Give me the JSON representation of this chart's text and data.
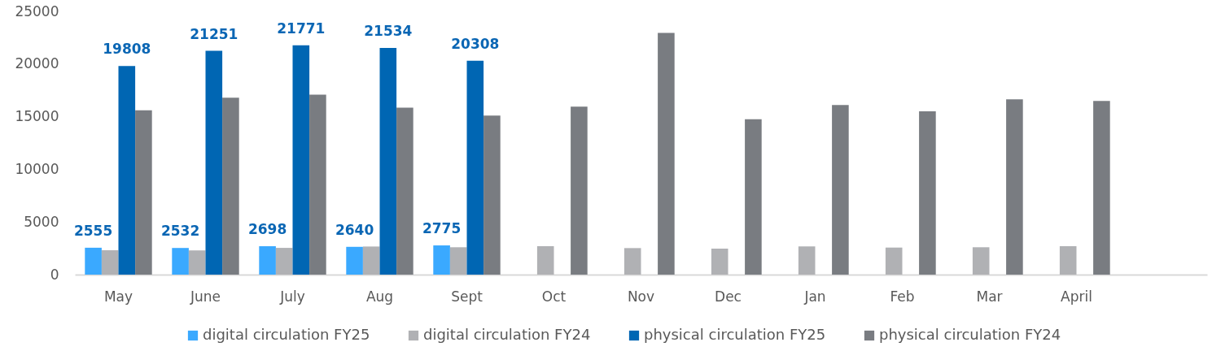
{
  "chart_data": {
    "type": "bar",
    "categories": [
      "May",
      "June",
      "July",
      "Aug",
      "Sept",
      "Oct",
      "Nov",
      "Dec",
      "Jan",
      "Feb",
      "Mar",
      "April",
      null
    ],
    "series": [
      {
        "name": "digital circulation FY25",
        "color": "#3aa9ff",
        "values": [
          2555,
          2532,
          2698,
          2640,
          2775,
          null,
          null,
          null,
          null,
          null,
          null,
          null,
          null
        ],
        "value_labels": [
          "2555",
          "2532",
          "2698",
          "2640",
          "2775",
          null,
          null,
          null,
          null,
          null,
          null,
          null,
          null
        ]
      },
      {
        "name": "digital circulation FY24",
        "color": "#b0b1b4",
        "values": [
          2320,
          2300,
          2540,
          2670,
          2600,
          2700,
          2520,
          2470,
          2680,
          2570,
          2600,
          2700,
          null
        ]
      },
      {
        "name": "physical circulation FY25",
        "color": "#0066b3",
        "values": [
          19808,
          21251,
          21771,
          21534,
          20308,
          null,
          null,
          null,
          null,
          null,
          null,
          null,
          null
        ],
        "value_labels": [
          "19808",
          "21251",
          "21771",
          "21534",
          "20308",
          null,
          null,
          null,
          null,
          null,
          null,
          null,
          null
        ]
      },
      {
        "name": "physical circulation FY24",
        "color": "#797c81",
        "values": [
          15600,
          16800,
          17100,
          15850,
          15100,
          15950,
          22950,
          14750,
          16100,
          15500,
          16650,
          16500,
          null
        ]
      }
    ],
    "ylim": [
      0,
      25000
    ],
    "yticks": [
      0,
      5000,
      10000,
      15000,
      20000,
      25000
    ],
    "grid": false,
    "legend": "bottom"
  }
}
